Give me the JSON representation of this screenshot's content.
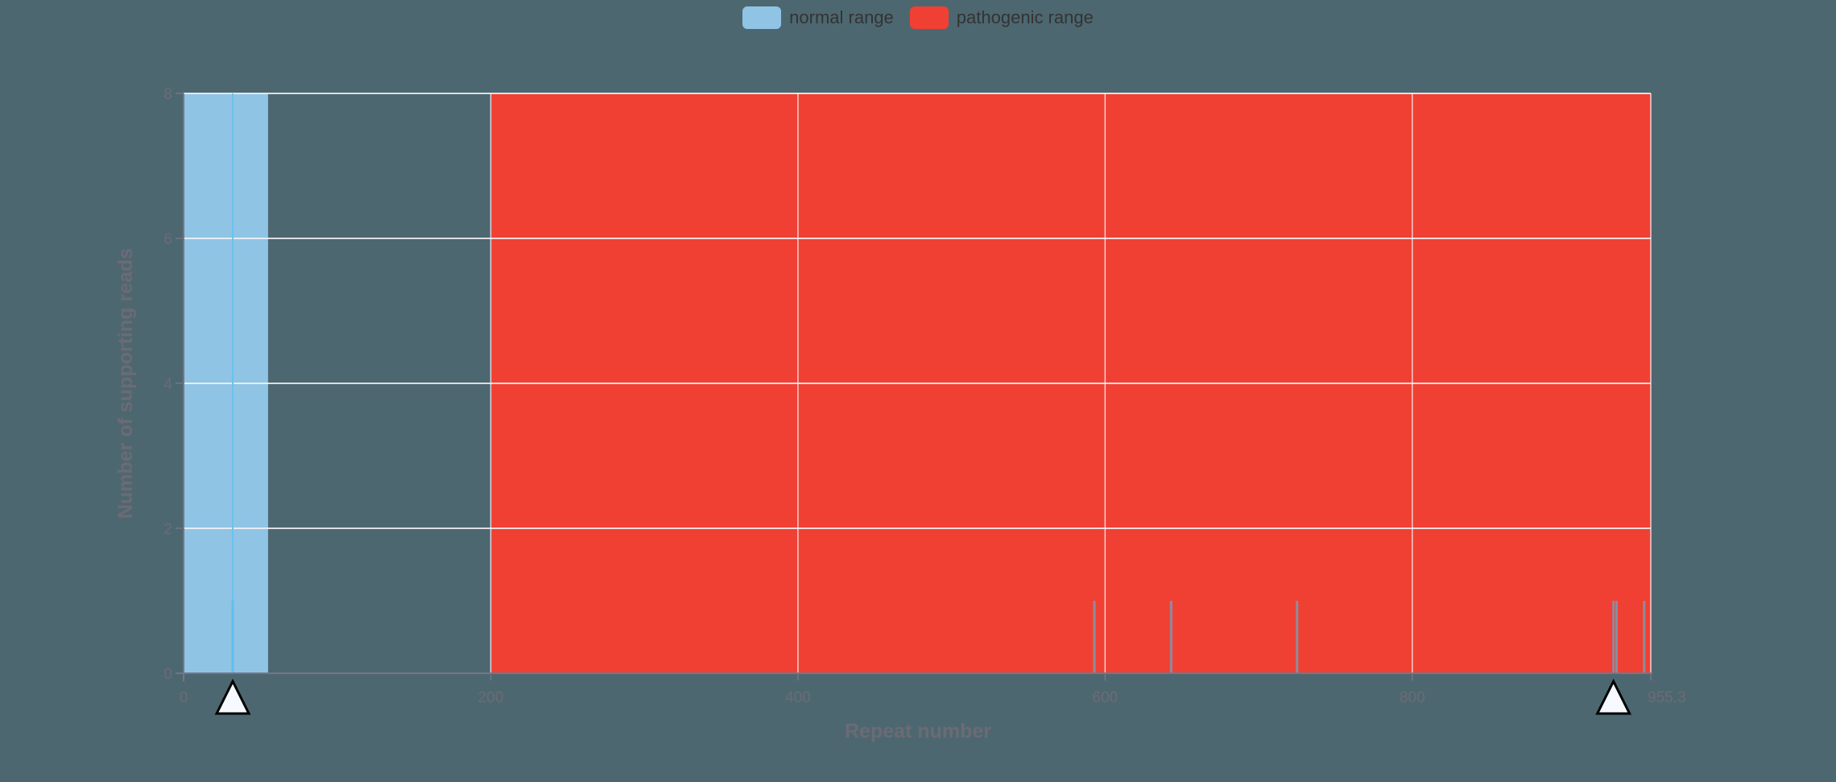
{
  "chart_data": {
    "type": "bar",
    "title": "",
    "xlabel": "Repeat number",
    "ylabel": "Number of supporting reads",
    "xlim": [
      0,
      955.3
    ],
    "ylim": [
      0,
      8
    ],
    "x_ticks": [
      0,
      200,
      400,
      600,
      800,
      955.3
    ],
    "x_tick_labels": [
      "0",
      "200",
      "400",
      "600",
      "800",
      "955.3"
    ],
    "y_ticks": [
      0,
      2,
      4,
      6,
      8
    ],
    "y_tick_labels": [
      "0",
      "2",
      "4",
      "6",
      "8"
    ],
    "grid": true,
    "legend": [
      {
        "label": "normal range",
        "color": "#8fc4e5"
      },
      {
        "label": "pathogenic range",
        "color": "#f04033"
      }
    ],
    "legend_position": "top",
    "ranges": [
      {
        "name": "normal range",
        "start": 0,
        "end": 55,
        "color": "#8fc4e5"
      },
      {
        "name": "pathogenic range",
        "start": 200,
        "end": 955.3,
        "color": "#f04033"
      }
    ],
    "series": [
      {
        "name": "supporting reads",
        "x": [
          32,
          593,
          643,
          725,
          931,
          933,
          951
        ],
        "values": [
          1,
          1,
          1,
          1,
          1,
          1,
          1
        ]
      }
    ],
    "allele_markers": [
      32,
      931
    ],
    "allele_marker_lines": [
      32
    ]
  },
  "legend": {
    "items": [
      {
        "label": "normal range",
        "color": "#8fc4e5"
      },
      {
        "label": "pathogenic range",
        "color": "#f04033"
      }
    ]
  }
}
